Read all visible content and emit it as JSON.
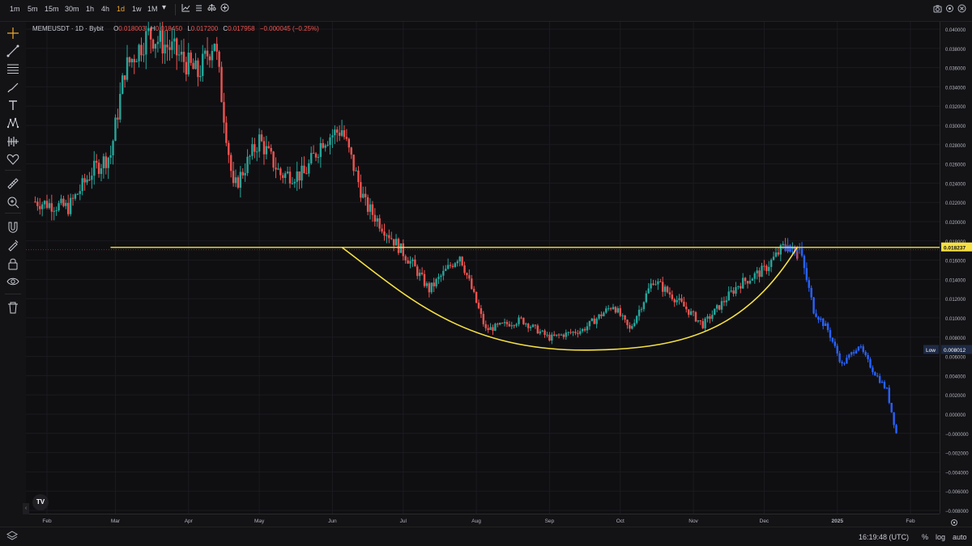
{
  "toolbar": {
    "timeframes": [
      {
        "label": "1m",
        "active": false
      },
      {
        "label": "5m",
        "active": false
      },
      {
        "label": "15m",
        "active": false
      },
      {
        "label": "30m",
        "active": false
      },
      {
        "label": "1h",
        "active": false
      },
      {
        "label": "4h",
        "active": false
      },
      {
        "label": "1d",
        "active": true
      },
      {
        "label": "1w",
        "active": false
      },
      {
        "label": "1M",
        "active": false
      }
    ],
    "dropdown_icon": "chevron-down-icon",
    "chart_type_icons": [
      "line-chart-icon",
      "indicators-icon",
      "compare-icon",
      "add-icon"
    ],
    "right_icons": [
      "camera-icon",
      "settings-icon",
      "fullscreen-icon"
    ]
  },
  "left_tools": [
    "crosshair-icon",
    "trendline-icon",
    "fib-icon",
    "brush-icon",
    "text-icon",
    "pattern-icon",
    "prediction-icon",
    "heart-icon",
    "ruler-icon",
    "zoom-in-icon",
    "magnet-icon",
    "lock-draw-icon",
    "lock-icon",
    "eye-icon",
    "trash-icon"
  ],
  "legend": {
    "symbol": "MEMEUSDT · 1D · Bybit",
    "o_label": "O",
    "o_value": "0.018003",
    "h_label": "H",
    "h_value": "0.018450",
    "l_label": "L",
    "l_value": "0.017200",
    "c_label": "C",
    "c_value": "0.017958",
    "change": "−0.000045 (−0.25%)"
  },
  "price_labels": {
    "current": "0.018237",
    "low_label": "Low",
    "low_value": "0.008012"
  },
  "status": {
    "time": "16:19:48 (UTC)",
    "percent": "%",
    "log": "log",
    "auto": "auto"
  },
  "colors": {
    "up": "#26a69a",
    "down": "#ef5350",
    "projection": "#2962ff",
    "resistance": "#f5e042",
    "background": "#0f0f12"
  },
  "chart_data": {
    "type": "candlestick",
    "symbol": "MEMEUSDT",
    "interval": "1D",
    "exchange": "Bybit",
    "x_ticks": [
      "Feb",
      "Mar",
      "Apr",
      "May",
      "Jun",
      "Jul",
      "Aug",
      "Sep",
      "Oct",
      "Nov",
      "Dec",
      "2025",
      "Feb"
    ],
    "y_ticks": [
      "0.040000",
      "0.038000",
      "0.036000",
      "0.034000",
      "0.032000",
      "0.030000",
      "0.028000",
      "0.026000",
      "0.024000",
      "0.022000",
      "0.020000",
      "0.018000",
      "0.016000",
      "0.014000",
      "0.012000",
      "0.010000",
      "0.008000",
      "0.006000",
      "0.004000",
      "0.002000",
      "0.000000",
      "−0.000000",
      "−0.002000",
      "−0.004000",
      "−0.006000",
      "−0.008000"
    ],
    "ylim": [
      -0.0081,
      0.0406
    ],
    "resistance_level": 0.018237,
    "close_path": [
      {
        "date": "2024-01-27",
        "value": 0.0228
      },
      {
        "date": "2024-02-10",
        "value": 0.0222
      },
      {
        "date": "2024-02-20",
        "value": 0.0258
      },
      {
        "date": "2024-02-28",
        "value": 0.0275
      },
      {
        "date": "2024-03-05",
        "value": 0.036
      },
      {
        "date": "2024-03-15",
        "value": 0.0395
      },
      {
        "date": "2024-03-25",
        "value": 0.038
      },
      {
        "date": "2024-04-05",
        "value": 0.0355
      },
      {
        "date": "2024-04-12",
        "value": 0.039
      },
      {
        "date": "2024-04-20",
        "value": 0.024
      },
      {
        "date": "2024-05-01",
        "value": 0.029
      },
      {
        "date": "2024-05-10",
        "value": 0.0255
      },
      {
        "date": "2024-05-20",
        "value": 0.0255
      },
      {
        "date": "2024-05-28",
        "value": 0.029
      },
      {
        "date": "2024-06-05",
        "value": 0.03
      },
      {
        "date": "2024-06-15",
        "value": 0.0225
      },
      {
        "date": "2024-06-25",
        "value": 0.0195
      },
      {
        "date": "2024-07-05",
        "value": 0.0165
      },
      {
        "date": "2024-07-12",
        "value": 0.014
      },
      {
        "date": "2024-07-25",
        "value": 0.0175
      },
      {
        "date": "2024-08-05",
        "value": 0.01
      },
      {
        "date": "2024-08-20",
        "value": 0.011
      },
      {
        "date": "2024-09-01",
        "value": 0.0092
      },
      {
        "date": "2024-09-15",
        "value": 0.01
      },
      {
        "date": "2024-09-28",
        "value": 0.0125
      },
      {
        "date": "2024-10-05",
        "value": 0.01
      },
      {
        "date": "2024-10-15",
        "value": 0.015
      },
      {
        "date": "2024-10-25",
        "value": 0.013
      },
      {
        "date": "2024-11-05",
        "value": 0.0105
      },
      {
        "date": "2024-11-20",
        "value": 0.0145
      },
      {
        "date": "2024-12-01",
        "value": 0.016
      },
      {
        "date": "2024-12-10",
        "value": 0.0185
      },
      {
        "date": "2024-12-15",
        "value": 0.0175
      }
    ],
    "projection_path": [
      {
        "date": "2024-12-10",
        "value": 0.0185
      },
      {
        "date": "2024-12-16",
        "value": 0.018
      },
      {
        "date": "2024-12-22",
        "value": 0.012
      },
      {
        "date": "2024-12-28",
        "value": 0.01
      },
      {
        "date": "2025-01-03",
        "value": 0.0065
      },
      {
        "date": "2025-01-10",
        "value": 0.0085
      },
      {
        "date": "2025-01-16",
        "value": 0.006
      },
      {
        "date": "2025-01-22",
        "value": 0.004
      },
      {
        "date": "2025-01-26",
        "value": -0.0003
      }
    ],
    "annotations": [
      {
        "type": "horizontal_line",
        "value": 0.018237,
        "color": "#f5e042"
      },
      {
        "type": "cup_curve",
        "from_date": "2024-06-05",
        "bottom_date": "2024-09-20",
        "to_date": "2024-12-15",
        "bottom_value": 0.008,
        "color": "#f5e042"
      }
    ]
  }
}
